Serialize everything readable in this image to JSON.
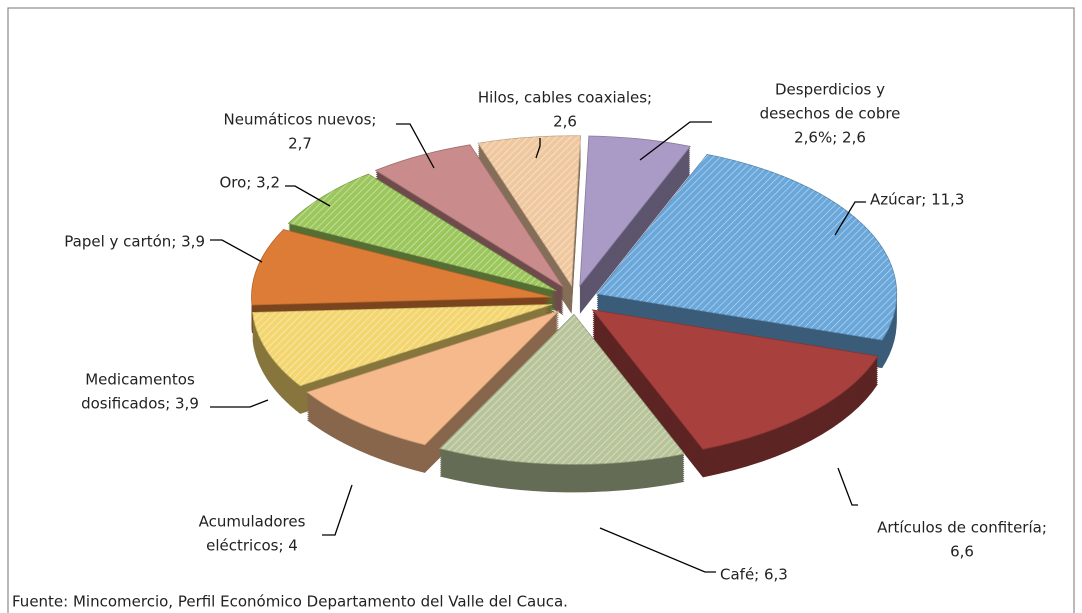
{
  "chart_data": {
    "type": "pie",
    "values": [
      2.6,
      11.3,
      6.6,
      6.3,
      4,
      3.9,
      3.9,
      3.2,
      2.7,
      2.6
    ],
    "value_labels": [
      [
        "Desperdicios y",
        "desechos de cobre",
        "2,6%; 2,6"
      ],
      [
        "Azúcar; 11,3"
      ],
      [
        "Artículos de confitería;",
        "6,6"
      ],
      [
        "Café; 6,3"
      ],
      [
        "Acumuladores",
        "eléctricos; 4"
      ],
      [
        "Medicamentos",
        "dosificados; 3,9"
      ],
      [
        "Papel y cartón; 3,9"
      ],
      [
        "Oro; 3,2"
      ],
      [
        "Neumáticos nuevos;",
        "2,7"
      ],
      [
        "Hilos, cables coaxiales;",
        "2,6"
      ]
    ],
    "colors": [
      "#a99bc6",
      "#6aa7da",
      "#a8413d",
      "#b8c49a",
      "#f5b98b",
      "#f3d66f",
      "#dd7c36",
      "#9cc75c",
      "#c98b8b",
      "#f0c8a0"
    ],
    "source": "Fuente: Mincomercio, Perfil Económico Departamento del Valle del Cauca."
  }
}
